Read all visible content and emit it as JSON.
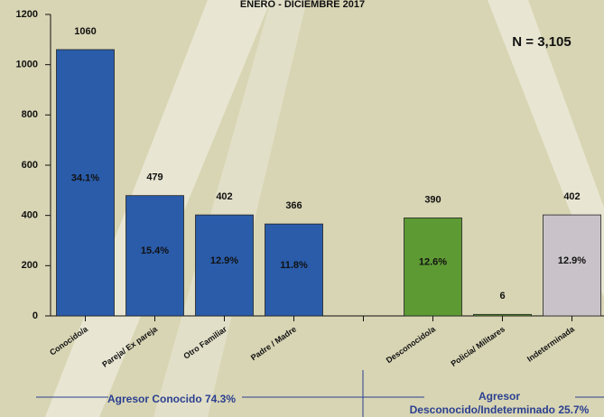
{
  "chart_data": {
    "type": "bar",
    "title": "ENERO - DICIEMBRE 2017",
    "annotation": "N = 3,105",
    "categories": [
      "Conocido/a",
      "Pareja/ Ex pareja",
      "Otro Familiar",
      "Padre / Madre",
      null,
      "Desconocido/a",
      "Policía/ Militares",
      "Indeterminada"
    ],
    "values": [
      1060,
      479,
      402,
      366,
      null,
      390,
      6,
      402
    ],
    "percent_labels": [
      "34.1%",
      "15.4%",
      "12.9%",
      "11.8%",
      null,
      "12.6%",
      null,
      "12.9%"
    ],
    "colors": [
      "#2a5caa",
      "#2a5caa",
      "#2a5caa",
      "#2a5caa",
      null,
      "#5e9a34",
      "#5e9a34",
      "#c9c3c9"
    ],
    "ylim": [
      0,
      1200
    ],
    "yticks": [
      0,
      200,
      400,
      600,
      800,
      1000,
      1200
    ],
    "groups": [
      "Agresor Conocido 74.3%",
      "Agresor",
      "Desconocido/Indeterminado 25.7%"
    ]
  }
}
